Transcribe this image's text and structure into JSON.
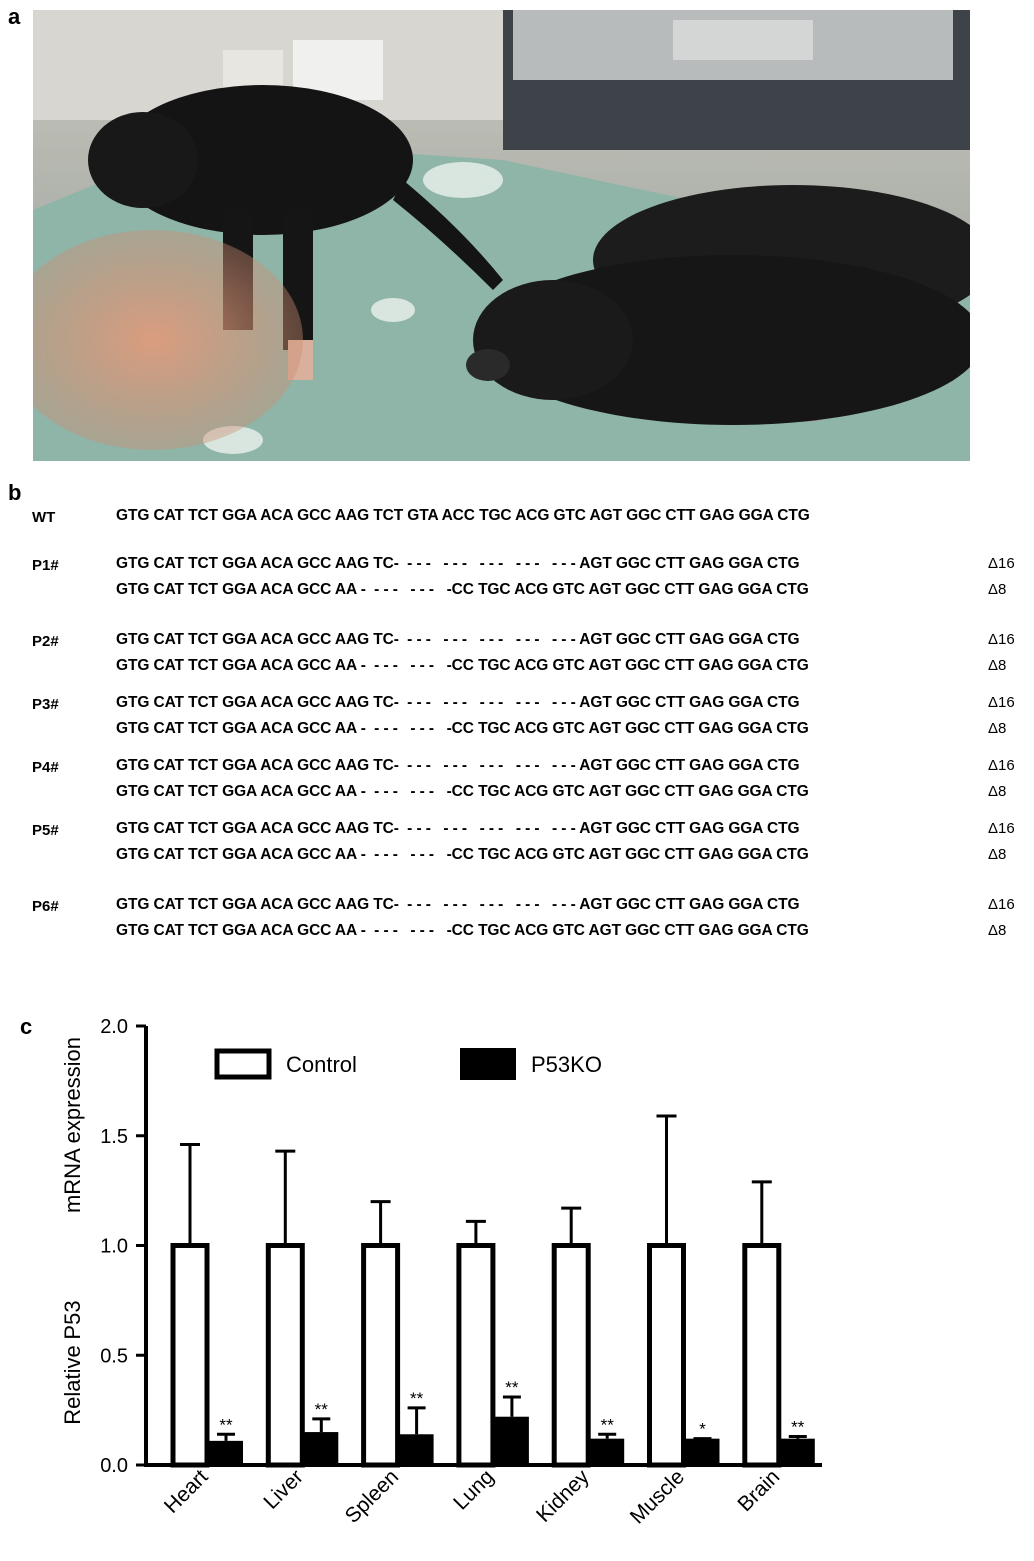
{
  "panels": {
    "a": "a",
    "b": "b",
    "c": "c"
  },
  "sequences": {
    "wt": {
      "label": "WT",
      "seq": "GTG CAT TCT GGA ACA GCC AAG TCT GTA ACC TGC ACG GTC AGT GGC CTT GAG GGA CTG"
    },
    "rows": [
      {
        "label": "P1#",
        "allele1": "GTG CAT TCT GGA ACA GCC AAG TC-  - - -   - - -   - - -   - - -   - - - AGT GGC CTT GAG GGA CTG",
        "delta1": "Δ16",
        "allele2": "GTG CAT TCT GGA ACA GCC AA -  - - -   - - -   -CC TGC ACG GTC AGT GGC CTT GAG GGA CTG",
        "delta2": "Δ8"
      },
      {
        "label": "P2#",
        "allele1": "GTG CAT TCT GGA ACA GCC AAG TC-  - - -   - - -   - - -   - - -   - - - AGT GGC CTT GAG GGA CTG",
        "delta1": "Δ16",
        "allele2": "GTG CAT TCT GGA ACA GCC AA -  - - -   - - -   -CC TGC ACG GTC AGT GGC CTT GAG GGA CTG",
        "delta2": "Δ8"
      },
      {
        "label": "P3#",
        "allele1": "GTG CAT TCT GGA ACA GCC AAG TC-  - - -   - - -   - - -   - - -   - - - AGT GGC CTT GAG GGA CTG",
        "delta1": "Δ16",
        "allele2": "GTG CAT TCT GGA ACA GCC AA -  - - -   - - -   -CC TGC ACG GTC AGT GGC CTT GAG GGA CTG",
        "delta2": "Δ8"
      },
      {
        "label": "P4#",
        "allele1": "GTG CAT TCT GGA ACA GCC AAG TC-  - - -   - - -   - - -   - - -   - - - AGT GGC CTT GAG GGA CTG",
        "delta1": "Δ16",
        "allele2": "GTG CAT TCT GGA ACA GCC AA -  - - -   - - -   -CC TGC ACG GTC AGT GGC CTT GAG GGA CTG",
        "delta2": "Δ8"
      },
      {
        "label": "P5#",
        "allele1": "GTG CAT TCT GGA ACA GCC AAG TC-  - - -   - - -   - - -   - - -   - - - AGT GGC CTT GAG GGA CTG",
        "delta1": "Δ16",
        "allele2": "GTG CAT TCT GGA ACA GCC AA -  - - -   - - -   -CC TGC ACG GTC AGT GGC CTT GAG GGA CTG",
        "delta2": "Δ8"
      },
      {
        "label": "P6#",
        "allele1": "GTG CAT TCT GGA ACA GCC AAG TC-  - - -   - - -   - - -   - - -   - - - AGT GGC CTT GAG GGA CTG",
        "delta1": "Δ16",
        "allele2": "GTG CAT TCT GGA ACA GCC AA -  - - -   - - -   -CC TGC ACG GTC AGT GGC CTT GAG GGA CTG",
        "delta2": "Δ8"
      }
    ]
  },
  "chart_data": {
    "type": "bar",
    "ylabel_parts": [
      "Relative",
      "P53",
      "mRNA expression"
    ],
    "ylim": [
      0,
      2.0
    ],
    "yticks": [
      "0.0",
      "0.5",
      "1.0",
      "1.5",
      "2.0"
    ],
    "categories": [
      "Heart",
      "Liver",
      "Spleen",
      "Lung",
      "Kidney",
      "Muscle",
      "Brain"
    ],
    "series": [
      {
        "name": "Control",
        "values": [
          1.0,
          1.0,
          1.0,
          1.0,
          1.0,
          1.0,
          1.0
        ],
        "errors": [
          0.46,
          0.43,
          0.2,
          0.11,
          0.17,
          0.59,
          0.29
        ],
        "fill": "#ffffff"
      },
      {
        "name": "P53KO",
        "values": [
          0.11,
          0.15,
          0.14,
          0.22,
          0.12,
          0.12,
          0.12
        ],
        "errors": [
          0.03,
          0.06,
          0.12,
          0.09,
          0.02,
          0.0,
          0.01
        ],
        "fill": "#000000"
      }
    ],
    "significance": [
      "**",
      "**",
      "**",
      "**",
      "**",
      "*",
      "**"
    ],
    "legend_position": "top"
  }
}
